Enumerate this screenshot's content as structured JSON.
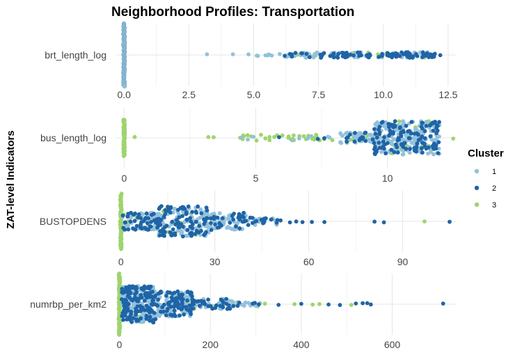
{
  "chart_data": {
    "type": "scatter",
    "title": "Neighborhood Profiles: Transportation",
    "ylabel": "ZAT-level Indicators",
    "legend": {
      "title": "Cluster",
      "placement": "right",
      "items": [
        {
          "label": "1",
          "color": "#92C1DC"
        },
        {
          "label": "2",
          "color": "#1F64A6"
        },
        {
          "label": "3",
          "color": "#9ED46E"
        }
      ]
    },
    "panels": [
      {
        "indicator": "brt_length_log",
        "xlim": [
          -0.3,
          12.8
        ],
        "xticks": [
          0,
          2.5,
          5,
          7.5,
          10,
          12.5
        ],
        "xtick_labels": [
          "0.0",
          "2.5",
          "5.0",
          "7.5",
          "10.0",
          "12.5"
        ],
        "zero_mass": {
          "value": 0,
          "cluster": "1",
          "spread": 1.0
        },
        "points": [
          {
            "x": 3.2,
            "c": "1"
          },
          {
            "x": 4.2,
            "c": "1"
          },
          {
            "x": 4.8,
            "c": "1"
          },
          {
            "x": 5.6,
            "c": "1"
          },
          {
            "x": 6.2,
            "c": "2"
          },
          {
            "x": 6.7,
            "c": "3"
          },
          {
            "x": 7.4,
            "c": "3"
          },
          {
            "x": 9.8,
            "c": "3"
          },
          {
            "x": 10.4,
            "c": "3"
          },
          {
            "x": 11.2,
            "c": "1"
          },
          {
            "x": 12.2,
            "c": "2"
          }
        ],
        "bands": [
          {
            "from": 5.0,
            "to": 5.7,
            "n": 6,
            "mix": [
              1,
              0,
              0
            ],
            "spread": 0.05
          },
          {
            "from": 6.0,
            "to": 7.0,
            "n": 20,
            "mix": [
              0.5,
              0.35,
              0.15
            ],
            "spread": 0.07
          },
          {
            "from": 7.0,
            "to": 12.0,
            "n": 160,
            "mix": [
              0.4,
              0.5,
              0.1
            ],
            "spread": 0.09
          }
        ]
      },
      {
        "indicator": "bus_length_log",
        "xlim": [
          -0.3,
          12.6
        ],
        "xticks": [
          0,
          5,
          10
        ],
        "xtick_labels": [
          "0",
          "5",
          "10"
        ],
        "zero_mass": {
          "value": 0,
          "cluster": "3",
          "spread": 0.6
        },
        "points": [
          {
            "x": 0.4,
            "c": "3"
          },
          {
            "x": 3.2,
            "c": "3"
          },
          {
            "x": 3.4,
            "c": "3"
          },
          {
            "x": 4.5,
            "c": "3"
          },
          {
            "x": 12.5,
            "c": "3"
          }
        ],
        "bands": [
          {
            "from": 4.4,
            "to": 8.2,
            "n": 45,
            "mix": [
              0.15,
              0.05,
              0.8
            ],
            "spread": 0.1
          },
          {
            "from": 8.2,
            "to": 9.5,
            "n": 70,
            "mix": [
              0.6,
              0.25,
              0.15
            ],
            "spread": 0.18
          },
          {
            "from": 9.5,
            "to": 12.0,
            "n": 340,
            "mix": [
              0.55,
              0.4,
              0.05
            ],
            "spread": 0.55
          }
        ]
      },
      {
        "indicator": "BUSTOPDENS",
        "xlim": [
          -1.5,
          107
        ],
        "xticks": [
          0,
          30,
          60,
          90
        ],
        "xtick_labels": [
          "0",
          "30",
          "60",
          "90"
        ],
        "zero_mass": {
          "value": 0,
          "cluster": "3",
          "spread": 0.9
        },
        "points": [
          {
            "x": 51,
            "c": "2"
          },
          {
            "x": 54,
            "c": "2"
          },
          {
            "x": 56,
            "c": "2"
          },
          {
            "x": 58,
            "c": "2"
          },
          {
            "x": 61,
            "c": "2"
          },
          {
            "x": 65,
            "c": "2"
          },
          {
            "x": 81,
            "c": "2"
          },
          {
            "x": 84,
            "c": "2"
          },
          {
            "x": 97,
            "c": "3"
          },
          {
            "x": 105,
            "c": "2"
          }
        ],
        "bands": [
          {
            "from": 0.5,
            "to": 12,
            "n": 120,
            "mix": [
              0.55,
              0.35,
              0.1
            ],
            "spread": 0.28
          },
          {
            "from": 12,
            "to": 28,
            "n": 200,
            "mix": [
              0.55,
              0.4,
              0.05
            ],
            "spread": 0.5
          },
          {
            "from": 28,
            "to": 40,
            "n": 100,
            "mix": [
              0.6,
              0.35,
              0.05
            ],
            "spread": 0.28
          },
          {
            "from": 40,
            "to": 50,
            "n": 30,
            "mix": [
              0.5,
              0.45,
              0.05
            ],
            "spread": 0.12
          }
        ]
      },
      {
        "indicator": "numrbp_per_km2",
        "xlim": [
          -7,
          740
        ],
        "xticks": [
          0,
          200,
          400,
          600
        ],
        "xtick_labels": [
          "0",
          "200",
          "400",
          "600"
        ],
        "zero_mass": {
          "value": 0,
          "cluster": "3",
          "spread": 1.0
        },
        "points": [
          {
            "x": 320,
            "c": "3"
          },
          {
            "x": 350,
            "c": "2"
          },
          {
            "x": 385,
            "c": "3"
          },
          {
            "x": 400,
            "c": "2"
          },
          {
            "x": 425,
            "c": "3"
          },
          {
            "x": 440,
            "c": "3"
          },
          {
            "x": 460,
            "c": "2"
          },
          {
            "x": 485,
            "c": "2"
          },
          {
            "x": 510,
            "c": "3"
          },
          {
            "x": 520,
            "c": "2"
          },
          {
            "x": 535,
            "c": "2"
          },
          {
            "x": 545,
            "c": "2"
          },
          {
            "x": 553,
            "c": "2"
          },
          {
            "x": 712,
            "c": "2"
          }
        ],
        "bands": [
          {
            "from": 5,
            "to": 80,
            "n": 320,
            "mix": [
              0.5,
              0.45,
              0.05
            ],
            "spread": 0.6
          },
          {
            "from": 80,
            "to": 160,
            "n": 180,
            "mix": [
              0.55,
              0.4,
              0.05
            ],
            "spread": 0.42
          },
          {
            "from": 160,
            "to": 250,
            "n": 70,
            "mix": [
              0.45,
              0.45,
              0.1
            ],
            "spread": 0.18
          },
          {
            "from": 250,
            "to": 310,
            "n": 25,
            "mix": [
              0.35,
              0.45,
              0.2
            ],
            "spread": 0.08
          }
        ]
      }
    ]
  }
}
